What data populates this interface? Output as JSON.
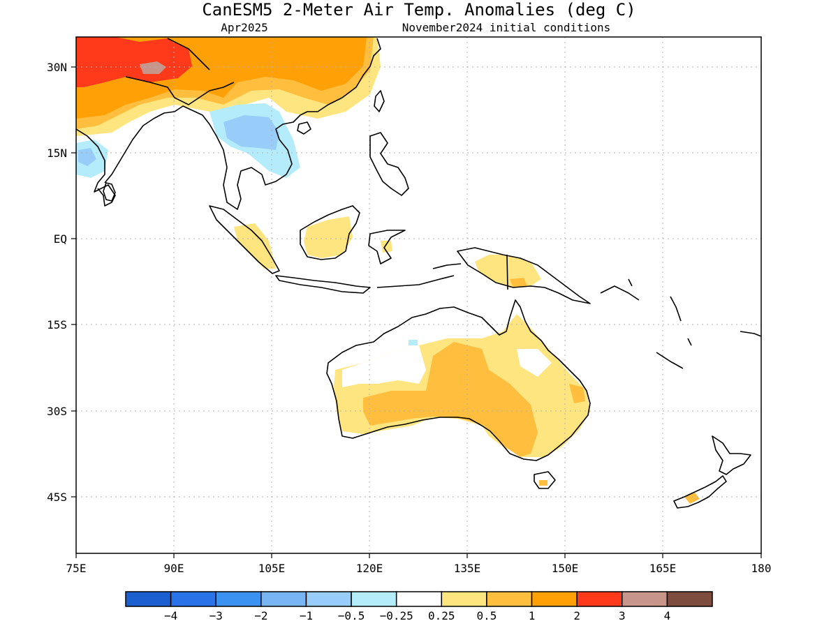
{
  "title": "CanESM5 2-Meter Air Temp. Anomalies (deg C)",
  "subtitle_left": "Apr2025",
  "subtitle_right": "November2024 initial conditions",
  "axes": {
    "lon_ticks": [
      "75E",
      "90E",
      "105E",
      "120E",
      "135E",
      "150E",
      "165E",
      "180"
    ],
    "lat_ticks": [
      "30N",
      "15N",
      "EQ",
      "15S",
      "30S",
      "45S"
    ],
    "lon_range": [
      75,
      180
    ],
    "lat_range": [
      -55,
      35
    ]
  },
  "legend": {
    "colors": [
      "#1c5fcf",
      "#2a72e8",
      "#3b92f0",
      "#79b4f5",
      "#98cdf9",
      "#b5ecfb",
      "#ffffff",
      "#ffe57f",
      "#ffbe3e",
      "#ffa007",
      "#ff3a1a",
      "#c8958a",
      "#7e4c3e"
    ],
    "labels": [
      "-4",
      "-3",
      "-2",
      "-1",
      "-0.5",
      "-0.25",
      "0.25",
      "0.5",
      "1",
      "2",
      "3",
      "4"
    ]
  },
  "colors": {
    "coast": "#000000",
    "grid": "#b0b0b0"
  }
}
